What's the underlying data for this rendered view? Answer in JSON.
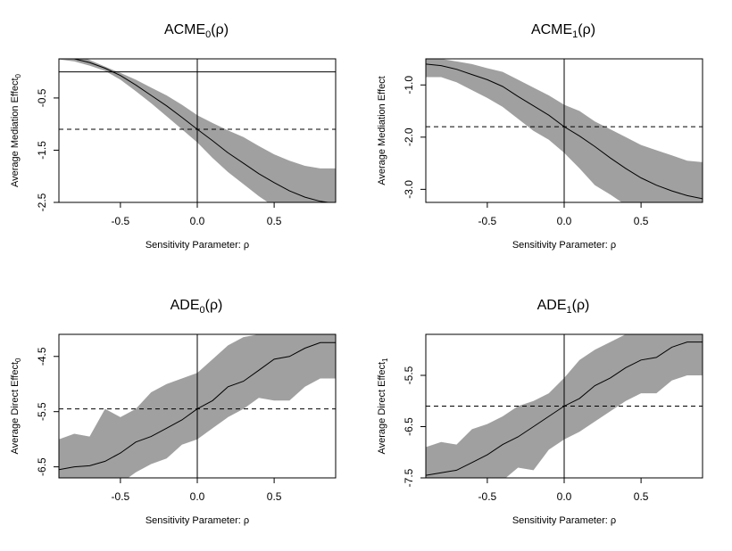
{
  "chart_data": [
    {
      "type": "line",
      "title_main": "ACME",
      "title_sub": "0",
      "title_tail": "(ρ)",
      "xlabel": "Sensitivity Parameter: ρ",
      "ylabel": "Average Mediation Effect",
      "ylabel_suffix": "0",
      "xlim": [
        -0.9,
        0.9
      ],
      "ylim": [
        -2.5,
        0.25
      ],
      "xticks": [
        -0.5,
        0.0,
        0.5
      ],
      "xtick_labels": [
        "-0.5",
        "0.0",
        "0.5"
      ],
      "yticks": [
        -0.5,
        -1.5,
        -2.5
      ],
      "ytick_labels": [
        "-0.5",
        "-1.5",
        "-2.5"
      ],
      "hline_solid": 0.0,
      "hline_dashed": -1.1,
      "vline": 0.0,
      "series": [
        {
          "x": [
            -0.9,
            -0.8,
            -0.7,
            -0.6,
            -0.5,
            -0.4,
            -0.3,
            -0.2,
            -0.1,
            0.0,
            0.1,
            0.2,
            0.3,
            0.4,
            0.5,
            0.6,
            0.7,
            0.8,
            0.9
          ],
          "y": [
            0.27,
            0.25,
            0.18,
            0.07,
            -0.07,
            -0.25,
            -0.45,
            -0.65,
            -0.87,
            -1.1,
            -1.32,
            -1.55,
            -1.75,
            -1.95,
            -2.12,
            -2.28,
            -2.4,
            -2.48,
            -2.52
          ],
          "lower": [
            0.24,
            0.2,
            0.12,
            0.02,
            -0.15,
            -0.37,
            -0.6,
            -0.85,
            -1.1,
            -1.35,
            -1.65,
            -1.92,
            -2.15,
            -2.38,
            -2.58,
            -2.7,
            -2.75,
            -2.75,
            -2.75
          ],
          "upper": [
            0.35,
            0.33,
            0.23,
            0.1,
            -0.02,
            -0.15,
            -0.3,
            -0.45,
            -0.63,
            -0.83,
            -0.98,
            -1.12,
            -1.25,
            -1.42,
            -1.58,
            -1.7,
            -1.8,
            -1.85,
            -1.85
          ]
        }
      ]
    },
    {
      "type": "line",
      "title_main": "ACME",
      "title_sub": "1",
      "title_tail": "(ρ)",
      "xlabel": "Sensitivity Parameter: ρ",
      "ylabel": "Average Mediation Effect",
      "ylabel_suffix": "",
      "xlim": [
        -0.9,
        0.9
      ],
      "ylim": [
        -3.25,
        -0.5
      ],
      "xticks": [
        -0.5,
        0.0,
        0.5
      ],
      "xtick_labels": [
        "-0.5",
        "0.0",
        "0.5"
      ],
      "yticks": [
        -1.0,
        -2.0,
        -3.0
      ],
      "ytick_labels": [
        "-1.0",
        "-2.0",
        "-3.0"
      ],
      "hline_dashed": -1.8,
      "vline": 0.0,
      "series": [
        {
          "x": [
            -0.9,
            -0.8,
            -0.7,
            -0.6,
            -0.5,
            -0.4,
            -0.3,
            -0.2,
            -0.1,
            0.0,
            0.1,
            0.2,
            0.3,
            0.4,
            0.5,
            0.6,
            0.7,
            0.8,
            0.9
          ],
          "y": [
            -0.6,
            -0.63,
            -0.7,
            -0.8,
            -0.9,
            -1.03,
            -1.22,
            -1.4,
            -1.58,
            -1.8,
            -1.98,
            -2.18,
            -2.4,
            -2.6,
            -2.78,
            -2.92,
            -3.03,
            -3.12,
            -3.18
          ],
          "lower": [
            -0.85,
            -0.85,
            -0.95,
            -1.1,
            -1.25,
            -1.42,
            -1.65,
            -1.88,
            -2.05,
            -2.3,
            -2.6,
            -2.92,
            -3.1,
            -3.3,
            -3.3,
            -3.3,
            -3.3,
            -3.3,
            -3.3
          ],
          "upper": [
            -0.5,
            -0.5,
            -0.55,
            -0.6,
            -0.68,
            -0.75,
            -0.9,
            -1.05,
            -1.2,
            -1.38,
            -1.5,
            -1.7,
            -1.85,
            -2.0,
            -2.15,
            -2.25,
            -2.35,
            -2.45,
            -2.48
          ]
        }
      ]
    },
    {
      "type": "line",
      "title_main": "ADE",
      "title_sub": "0",
      "title_tail": "(ρ)",
      "xlabel": "Sensitivity Parameter: ρ",
      "ylabel": "Average Direct Effect",
      "ylabel_suffix": "0",
      "xlim": [
        -0.9,
        0.9
      ],
      "ylim": [
        -6.7,
        -4.1
      ],
      "xticks": [
        -0.5,
        0.0,
        0.5
      ],
      "xtick_labels": [
        "-0.5",
        "0.0",
        "0.5"
      ],
      "yticks": [
        -4.5,
        -5.5,
        -6.5
      ],
      "ytick_labels": [
        "-4.5",
        "-5.5",
        "-6.5"
      ],
      "hline_dashed": -5.45,
      "vline": 0.0,
      "series": [
        {
          "x": [
            -0.9,
            -0.8,
            -0.7,
            -0.6,
            -0.5,
            -0.4,
            -0.3,
            -0.2,
            -0.1,
            0.0,
            0.1,
            0.2,
            0.3,
            0.4,
            0.5,
            0.6,
            0.7,
            0.8,
            0.9
          ],
          "y": [
            -6.55,
            -6.5,
            -6.48,
            -6.4,
            -6.25,
            -6.05,
            -5.95,
            -5.8,
            -5.65,
            -5.45,
            -5.3,
            -5.05,
            -4.95,
            -4.75,
            -4.55,
            -4.5,
            -4.35,
            -4.25,
            -4.25
          ],
          "lower": [
            -7.0,
            -7.0,
            -7.0,
            -7.0,
            -6.8,
            -6.6,
            -6.45,
            -6.35,
            -6.1,
            -6.0,
            -5.8,
            -5.6,
            -5.45,
            -5.25,
            -5.3,
            -5.3,
            -5.05,
            -4.9,
            -4.9
          ],
          "upper": [
            -6.0,
            -5.9,
            -5.95,
            -5.45,
            -5.6,
            -5.45,
            -5.15,
            -5.0,
            -4.9,
            -4.8,
            -4.55,
            -4.3,
            -4.15,
            -4.1,
            -4.1,
            -4.1,
            -4.1,
            -4.1,
            -4.1
          ]
        }
      ]
    },
    {
      "type": "line",
      "title_main": "ADE",
      "title_sub": "1",
      "title_tail": "(ρ)",
      "xlabel": "Sensitivity Parameter: ρ",
      "ylabel": "Average Direct Effect",
      "ylabel_suffix": "1",
      "xlim": [
        -0.9,
        0.9
      ],
      "ylim": [
        -7.5,
        -4.7
      ],
      "xticks": [
        -0.5,
        0.0,
        0.5
      ],
      "xtick_labels": [
        "-0.5",
        "0.0",
        "0.5"
      ],
      "yticks": [
        -5.5,
        -6.5,
        -7.5
      ],
      "ytick_labels": [
        "-5.5",
        "-6.5",
        "-7.5"
      ],
      "hline_dashed": -6.1,
      "vline": 0.0,
      "series": [
        {
          "x": [
            -0.9,
            -0.8,
            -0.7,
            -0.6,
            -0.5,
            -0.4,
            -0.3,
            -0.2,
            -0.1,
            0.0,
            0.1,
            0.2,
            0.3,
            0.4,
            0.5,
            0.6,
            0.7,
            0.8,
            0.9
          ],
          "y": [
            -7.45,
            -7.4,
            -7.35,
            -7.2,
            -7.05,
            -6.85,
            -6.7,
            -6.5,
            -6.3,
            -6.1,
            -5.95,
            -5.7,
            -5.55,
            -5.35,
            -5.2,
            -5.15,
            -4.95,
            -4.85,
            -4.85
          ],
          "lower": [
            -7.9,
            -7.9,
            -7.9,
            -7.9,
            -7.7,
            -7.55,
            -7.3,
            -7.35,
            -6.95,
            -6.75,
            -6.6,
            -6.4,
            -6.2,
            -6.0,
            -5.85,
            -5.85,
            -5.6,
            -5.5,
            -5.5
          ],
          "upper": [
            -6.9,
            -6.8,
            -6.85,
            -6.55,
            -6.45,
            -6.3,
            -6.1,
            -6.0,
            -5.85,
            -5.55,
            -5.2,
            -5.0,
            -4.85,
            -4.7,
            -4.7,
            -4.7,
            -4.7,
            -4.7,
            -4.7
          ]
        }
      ]
    }
  ]
}
